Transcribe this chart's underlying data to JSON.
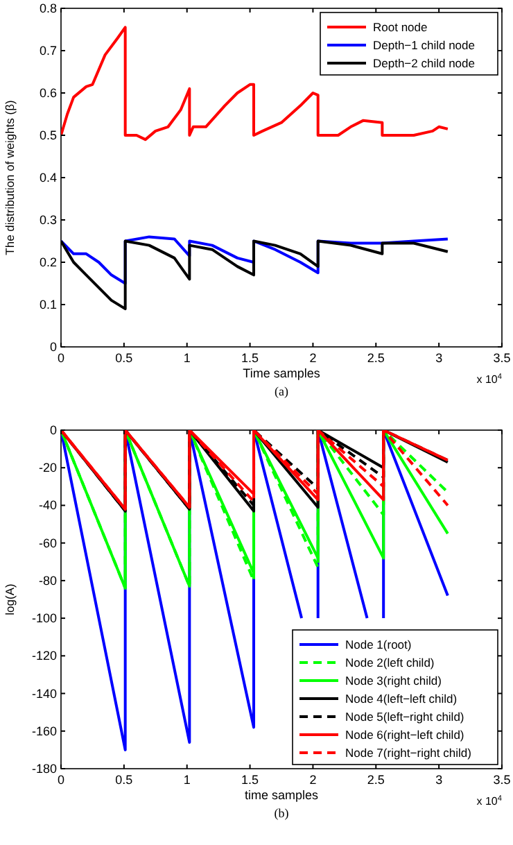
{
  "chart_data": [
    {
      "type": "line",
      "xlabel": "Time samples",
      "ylabel": "The distribution of weights (β)",
      "xlim": [
        0,
        3.5
      ],
      "ylim": [
        0,
        0.8
      ],
      "xticks": [
        0,
        0.5,
        1,
        1.5,
        2,
        2.5,
        3,
        3.5
      ],
      "yticks": [
        0,
        0.1,
        0.2,
        0.3,
        0.4,
        0.5,
        0.6,
        0.7,
        0.8
      ],
      "grid": false,
      "legend": "top right",
      "annotations": [
        "x 10$^{4}$",
        "(a)"
      ],
      "series": [
        {
          "name": "Root node",
          "color": "#ff0000",
          "x": [
            0,
            0.05,
            0.1,
            0.2,
            0.25,
            0.35,
            0.45,
            0.51,
            0.51,
            0.6,
            0.67,
            0.75,
            0.85,
            0.95,
            1.02,
            1.02,
            1.05,
            1.15,
            1.3,
            1.4,
            1.5,
            1.53,
            1.53,
            1.6,
            1.75,
            1.9,
            2.0,
            2.04,
            2.04,
            2.2,
            2.3,
            2.4,
            2.55,
            2.55,
            2.7,
            2.8,
            2.95,
            3.0,
            3.07
          ],
          "values": [
            0.5,
            0.55,
            0.59,
            0.615,
            0.62,
            0.69,
            0.73,
            0.755,
            0.5,
            0.5,
            0.49,
            0.51,
            0.52,
            0.56,
            0.61,
            0.5,
            0.52,
            0.52,
            0.57,
            0.6,
            0.62,
            0.62,
            0.5,
            0.51,
            0.53,
            0.57,
            0.6,
            0.595,
            0.5,
            0.5,
            0.52,
            0.535,
            0.53,
            0.5,
            0.5,
            0.5,
            0.51,
            0.52,
            0.515
          ]
        },
        {
          "name": "Depth−1 child node",
          "color": "#0000ff",
          "x": [
            0,
            0.1,
            0.2,
            0.3,
            0.4,
            0.51,
            0.51,
            0.7,
            0.9,
            1.02,
            1.02,
            1.2,
            1.4,
            1.53,
            1.53,
            1.7,
            1.9,
            2.04,
            2.04,
            2.3,
            2.55,
            2.8,
            3.07
          ],
          "values": [
            0.25,
            0.22,
            0.22,
            0.2,
            0.17,
            0.15,
            0.25,
            0.26,
            0.255,
            0.215,
            0.25,
            0.24,
            0.21,
            0.2,
            0.25,
            0.23,
            0.2,
            0.175,
            0.25,
            0.245,
            0.245,
            0.25,
            0.255
          ]
        },
        {
          "name": "Depth−2 child node",
          "color": "#000000",
          "x": [
            0,
            0.1,
            0.2,
            0.3,
            0.4,
            0.51,
            0.51,
            0.7,
            0.9,
            1.02,
            1.02,
            1.2,
            1.4,
            1.53,
            1.53,
            1.7,
            1.9,
            2.04,
            2.04,
            2.3,
            2.55,
            2.55,
            2.8,
            3.07
          ],
          "values": [
            0.25,
            0.2,
            0.17,
            0.14,
            0.11,
            0.09,
            0.25,
            0.24,
            0.21,
            0.16,
            0.24,
            0.23,
            0.19,
            0.17,
            0.25,
            0.24,
            0.22,
            0.19,
            0.25,
            0.24,
            0.22,
            0.245,
            0.245,
            0.225
          ]
        }
      ]
    },
    {
      "type": "line",
      "xlabel": "time samples",
      "ylabel": "log(A)",
      "xlim": [
        0,
        3.5
      ],
      "ylim": [
        -180,
        0
      ],
      "xticks": [
        0,
        0.5,
        1,
        1.5,
        2,
        2.5,
        3,
        3.5
      ],
      "yticks": [
        -180,
        -160,
        -140,
        -120,
        -100,
        -80,
        -60,
        -40,
        -20,
        0
      ],
      "grid": false,
      "legend": "bottom right",
      "annotations": [
        "x 10$^{4}$",
        "(b)"
      ],
      "series": [
        {
          "name": "Node 1(root)",
          "color": "#0000ff",
          "line_style": "solid",
          "x": [
            0,
            0.51,
            0.51,
            1.02,
            1.02,
            1.53,
            1.53,
            1.91,
            null,
            2.04,
            2.04,
            2.43,
            null,
            2.56,
            2.56,
            3.07
          ],
          "values": [
            0,
            -170,
            0,
            -166,
            0,
            -158,
            0,
            -100,
            null,
            -100,
            0,
            -100,
            null,
            -100,
            0,
            -88
          ]
        },
        {
          "name": "Node 2(left child)",
          "color": "#00ff00",
          "line_style": "dashed",
          "x": [
            0,
            0.51,
            0.51,
            1.02,
            1.02,
            1.53,
            1.53,
            2.04,
            2.04,
            2.56,
            2.56,
            3.07
          ],
          "values": [
            0,
            -84,
            0,
            -83,
            0,
            -80,
            0,
            -73,
            0,
            -45,
            0,
            -33
          ]
        },
        {
          "name": "Node 3(right child)",
          "color": "#00ff00",
          "line_style": "solid",
          "x": [
            0,
            0.51,
            0.51,
            1.02,
            1.02,
            1.53,
            1.53,
            2.04,
            2.04,
            2.56,
            2.56,
            3.07
          ],
          "values": [
            0,
            -84,
            0,
            -83,
            0,
            -76,
            0,
            -68,
            0,
            -68,
            0,
            -55
          ]
        },
        {
          "name": "Node 4(left−left child)",
          "color": "#000000",
          "line_style": "solid",
          "x": [
            0,
            0.51,
            0.51,
            1.02,
            1.02,
            1.53,
            1.53,
            2.04,
            2.04,
            2.56,
            2.56,
            3.07
          ],
          "values": [
            0,
            -43,
            0,
            -42,
            0,
            -43,
            0,
            -41,
            0,
            -20,
            0,
            -17
          ]
        },
        {
          "name": "Node 5(left−right child)",
          "color": "#000000",
          "line_style": "dashed",
          "x": [
            0,
            0.51,
            0.51,
            1.02,
            1.02,
            1.53,
            1.53,
            2.04,
            2.04,
            2.56,
            2.56,
            3.07
          ],
          "values": [
            0,
            -43,
            0,
            -42,
            0,
            -40,
            0,
            -31,
            0,
            -25,
            0,
            -16
          ]
        },
        {
          "name": "Node 6(right−left child)",
          "color": "#ff0000",
          "line_style": "solid",
          "x": [
            0,
            0.51,
            0.51,
            1.02,
            1.02,
            1.53,
            1.53,
            2.04,
            2.04,
            2.56,
            2.56,
            3.07
          ],
          "values": [
            0,
            -42,
            0,
            -41,
            0,
            -34,
            0,
            -37,
            0,
            -37,
            0,
            -16
          ]
        },
        {
          "name": "Node 7(right−right child)",
          "color": "#ff0000",
          "line_style": "dashed",
          "x": [
            0,
            0.51,
            0.51,
            1.02,
            1.02,
            1.53,
            1.53,
            2.04,
            2.04,
            2.56,
            2.56,
            3.07
          ],
          "values": [
            0,
            -42,
            0,
            -41,
            0,
            -38,
            0,
            -34,
            0,
            -30,
            0,
            -40
          ]
        }
      ]
    }
  ]
}
